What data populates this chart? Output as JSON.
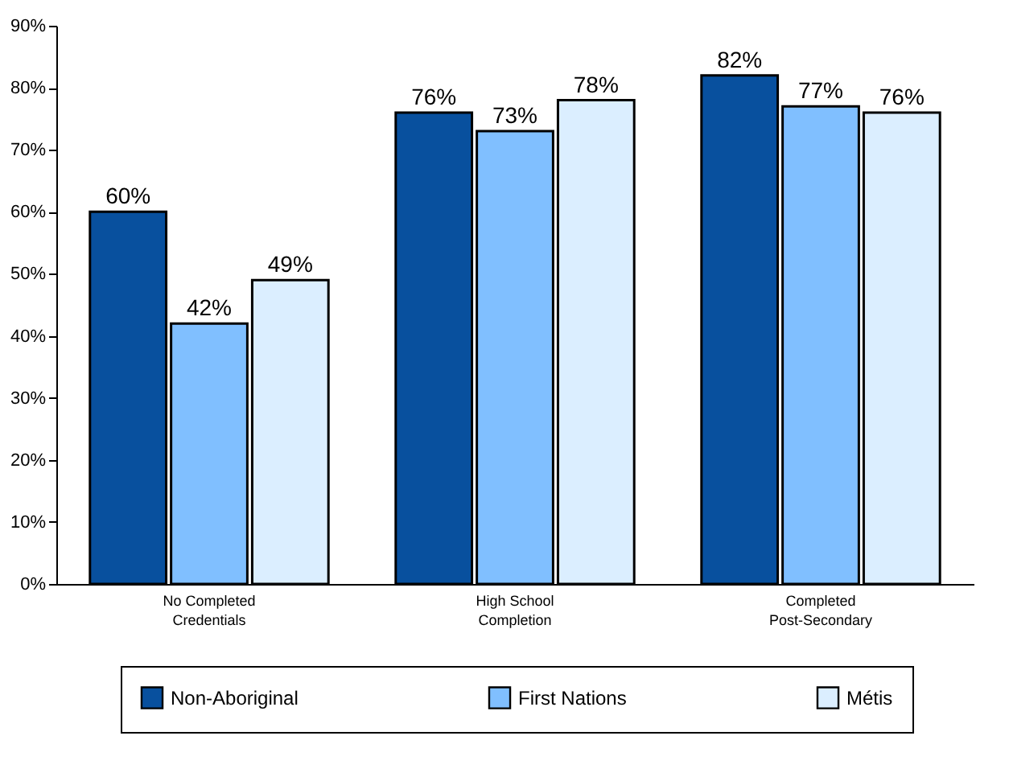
{
  "chart_data": {
    "type": "bar",
    "categories": [
      "No Completed Credentials",
      "High School Completion",
      "Completed Post-Secondary"
    ],
    "series": [
      {
        "name": "Non-Aboriginal",
        "color": "#08509e",
        "values": [
          60,
          76,
          82
        ]
      },
      {
        "name": "First Nations",
        "color": "#80bfff",
        "values": [
          42,
          73,
          77
        ]
      },
      {
        "name": "Métis",
        "color": "#dbeeff",
        "values": [
          49,
          78,
          76
        ]
      }
    ],
    "ylim": [
      0,
      90
    ],
    "yticks": [
      {
        "value": 0,
        "label": "0%"
      },
      {
        "value": 10,
        "label": "10%"
      },
      {
        "value": 20,
        "label": "20%"
      },
      {
        "value": 30,
        "label": "30%"
      },
      {
        "value": 40,
        "label": "40%"
      },
      {
        "value": 50,
        "label": "50%"
      },
      {
        "value": 60,
        "label": "60%"
      },
      {
        "value": 70,
        "label": "70%"
      },
      {
        "value": 80,
        "label": "80%"
      },
      {
        "value": 90,
        "label": "90%"
      }
    ],
    "value_labels": [
      [
        "60%",
        "76%",
        "82%"
      ],
      [
        "42%",
        "73%",
        "77%"
      ],
      [
        "49%",
        "78%",
        "76%"
      ]
    ],
    "grid": false,
    "legend": "bottom"
  }
}
